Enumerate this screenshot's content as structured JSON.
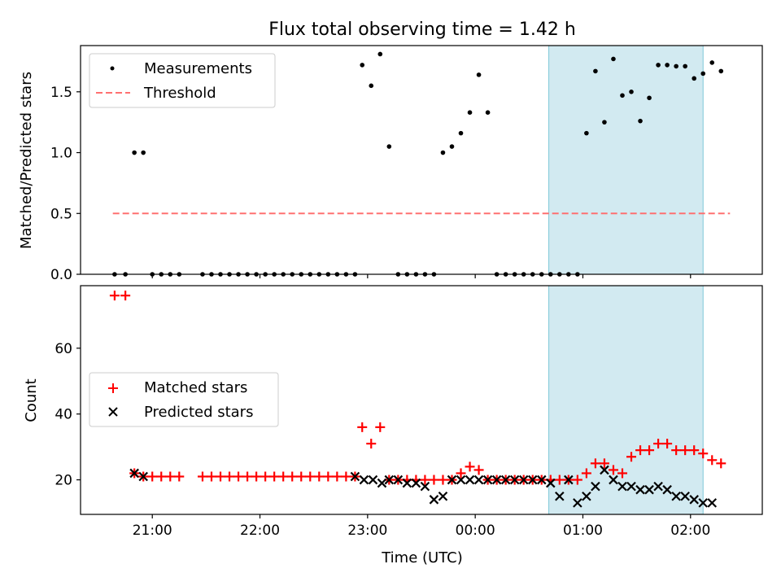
{
  "chart_data": [
    {
      "type": "scatter",
      "title": "Flux total observing time = 1.42 h",
      "xlabel": "",
      "ylabel": "Matched/Predicted stars",
      "ylim": [
        0,
        1.88
      ],
      "yticks": [
        "0.0",
        "0.5",
        "1.0",
        "1.5"
      ],
      "legend_position": "top-left",
      "shaded_region": {
        "x_start": "00:41",
        "x_end": "02:07",
        "color": "#add8e6"
      },
      "series": [
        {
          "name": "Measurements",
          "marker": "dot",
          "color": "#000000",
          "x": [
            "20:39",
            "20:45",
            "20:50",
            "20:55",
            "21:00",
            "21:05",
            "21:10",
            "21:15",
            "21:28",
            "21:33",
            "21:38",
            "21:43",
            "21:48",
            "21:53",
            "21:58",
            "22:03",
            "22:08",
            "22:13",
            "22:18",
            "22:23",
            "22:28",
            "22:33",
            "22:38",
            "22:43",
            "22:48",
            "22:53",
            "22:57",
            "23:02",
            "23:07",
            "23:12",
            "23:17",
            "23:22",
            "23:27",
            "23:32",
            "23:37",
            "23:42",
            "23:47",
            "23:52",
            "23:57",
            "00:02",
            "00:07",
            "00:12",
            "00:17",
            "00:22",
            "00:27",
            "00:32",
            "00:37",
            "00:42",
            "00:47",
            "00:52",
            "00:57",
            "01:02",
            "01:07",
            "01:12",
            "01:17",
            "01:22",
            "01:27",
            "01:32",
            "01:37",
            "01:42",
            "01:47",
            "01:52",
            "01:57",
            "02:02",
            "02:07",
            "02:12",
            "02:17"
          ],
          "y": [
            0,
            0,
            1.0,
            1.0,
            0,
            0,
            0,
            0,
            0,
            0,
            0,
            0,
            0,
            0,
            0,
            0,
            0,
            0,
            0,
            0,
            0,
            0,
            0,
            0,
            0,
            0,
            1.72,
            1.55,
            1.81,
            1.05,
            0,
            0,
            0,
            0,
            0,
            1.0,
            1.05,
            1.16,
            1.33,
            1.64,
            1.33,
            0,
            0,
            0,
            0,
            0,
            0,
            0,
            0,
            0,
            0,
            1.16,
            1.67,
            1.25,
            1.77,
            1.47,
            1.5,
            1.26,
            1.45,
            1.72,
            1.72,
            1.71,
            1.71,
            1.61,
            1.65,
            1.74,
            1.67
          ]
        },
        {
          "name": "Threshold",
          "marker": "dashed-line",
          "color": "#ff7070",
          "x": [
            "20:38",
            "02:22"
          ],
          "y": [
            0.5,
            0.5
          ]
        }
      ]
    },
    {
      "type": "scatter",
      "title": "",
      "xlabel": "Time (UTC)",
      "ylabel": "Count",
      "ylim": [
        9.5,
        79
      ],
      "yticks": [
        "20",
        "40",
        "60"
      ],
      "xticks": [
        "21:00",
        "22:00",
        "23:00",
        "00:00",
        "01:00",
        "02:00"
      ],
      "legend_position": "center-left",
      "shaded_region": {
        "x_start": "00:41",
        "x_end": "02:07",
        "color": "#add8e6"
      },
      "series": [
        {
          "name": "Matched stars",
          "marker": "plus",
          "color": "#ff0000",
          "x": [
            "20:39",
            "20:45",
            "20:50",
            "20:55",
            "21:00",
            "21:05",
            "21:10",
            "21:15",
            "21:28",
            "21:33",
            "21:38",
            "21:43",
            "21:48",
            "21:53",
            "21:58",
            "22:03",
            "22:08",
            "22:13",
            "22:18",
            "22:23",
            "22:28",
            "22:33",
            "22:38",
            "22:43",
            "22:48",
            "22:53",
            "22:57",
            "23:02",
            "23:07",
            "23:12",
            "23:17",
            "23:22",
            "23:27",
            "23:32",
            "23:37",
            "23:42",
            "23:47",
            "23:52",
            "23:57",
            "00:02",
            "00:07",
            "00:12",
            "00:17",
            "00:22",
            "00:27",
            "00:32",
            "00:37",
            "00:42",
            "00:47",
            "00:52",
            "00:57",
            "01:02",
            "01:07",
            "01:12",
            "01:17",
            "01:22",
            "01:27",
            "01:32",
            "01:37",
            "01:42",
            "01:47",
            "01:52",
            "01:57",
            "02:02",
            "02:07",
            "02:12",
            "02:17"
          ],
          "y": [
            76,
            76,
            22,
            21,
            21,
            21,
            21,
            21,
            21,
            21,
            21,
            21,
            21,
            21,
            21,
            21,
            21,
            21,
            21,
            21,
            21,
            21,
            21,
            21,
            21,
            21,
            36,
            31,
            36,
            20,
            20,
            20,
            20,
            20,
            20,
            20,
            20,
            22,
            24,
            23,
            20,
            20,
            20,
            20,
            20,
            20,
            20,
            20,
            20,
            20,
            20,
            22,
            25,
            25,
            23,
            22,
            27,
            29,
            29,
            31,
            31,
            29,
            29,
            29,
            28,
            26,
            25
          ]
        },
        {
          "name": "Predicted stars",
          "marker": "x",
          "color": "#000000",
          "x": [
            "20:50",
            "20:55",
            "22:53",
            "22:58",
            "23:03",
            "23:08",
            "23:12",
            "23:17",
            "23:22",
            "23:27",
            "23:32",
            "23:37",
            "23:42",
            "23:47",
            "23:52",
            "23:57",
            "00:02",
            "00:07",
            "00:12",
            "00:17",
            "00:22",
            "00:27",
            "00:32",
            "00:37",
            "00:42",
            "00:47",
            "00:52",
            "00:57",
            "01:02",
            "01:07",
            "01:12",
            "01:17",
            "01:22",
            "01:27",
            "01:32",
            "01:37",
            "01:42",
            "01:47",
            "01:52",
            "01:57",
            "02:02",
            "02:07",
            "02:12"
          ],
          "y": [
            22,
            21,
            21,
            20,
            20,
            19,
            20,
            20,
            19,
            19,
            18,
            14,
            15,
            20,
            20,
            20,
            20,
            20,
            20,
            20,
            20,
            20,
            20,
            20,
            19,
            15,
            20,
            13,
            15,
            18,
            23,
            20,
            18,
            18,
            17,
            17,
            18,
            17,
            15,
            15,
            14,
            13,
            13
          ]
        }
      ]
    }
  ]
}
